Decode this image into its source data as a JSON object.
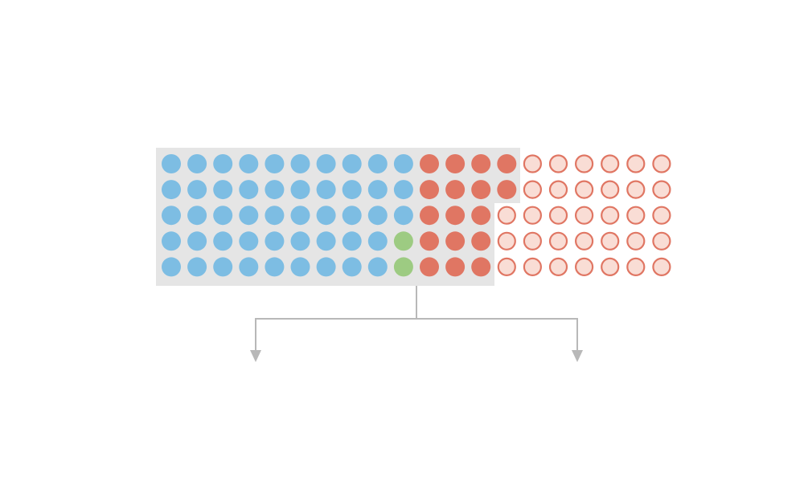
{
  "grid": {
    "rows": [
      [
        "blue",
        "blue",
        "blue",
        "blue",
        "blue",
        "blue",
        "blue",
        "blue",
        "blue",
        "blue",
        "red",
        "red",
        "red",
        "red",
        "outline",
        "outline",
        "outline",
        "outline",
        "outline",
        "outline"
      ],
      [
        "blue",
        "blue",
        "blue",
        "blue",
        "blue",
        "blue",
        "blue",
        "blue",
        "blue",
        "blue",
        "red",
        "red",
        "red",
        "red",
        "outline",
        "outline",
        "outline",
        "outline",
        "outline",
        "outline"
      ],
      [
        "blue",
        "blue",
        "blue",
        "blue",
        "blue",
        "blue",
        "blue",
        "blue",
        "blue",
        "blue",
        "red",
        "red",
        "red",
        "outline",
        "outline",
        "outline",
        "outline",
        "outline",
        "outline",
        "outline"
      ],
      [
        "blue",
        "blue",
        "blue",
        "blue",
        "blue",
        "blue",
        "blue",
        "blue",
        "blue",
        "green",
        "red",
        "red",
        "red",
        "outline",
        "outline",
        "outline",
        "outline",
        "outline",
        "outline",
        "outline"
      ],
      [
        "blue",
        "blue",
        "blue",
        "blue",
        "blue",
        "blue",
        "blue",
        "blue",
        "blue",
        "green",
        "red",
        "red",
        "red",
        "outline",
        "outline",
        "outline",
        "outline",
        "outline",
        "outline",
        "outline"
      ]
    ]
  },
  "colors": {
    "blue": "#7dbde3",
    "red": "#e07663",
    "green": "#9dcb82",
    "outline_fill": "#f9ddd5",
    "outline_stroke": "#e07663",
    "highlight": "#e5e5e5",
    "arrow": "#b8b8b8"
  }
}
